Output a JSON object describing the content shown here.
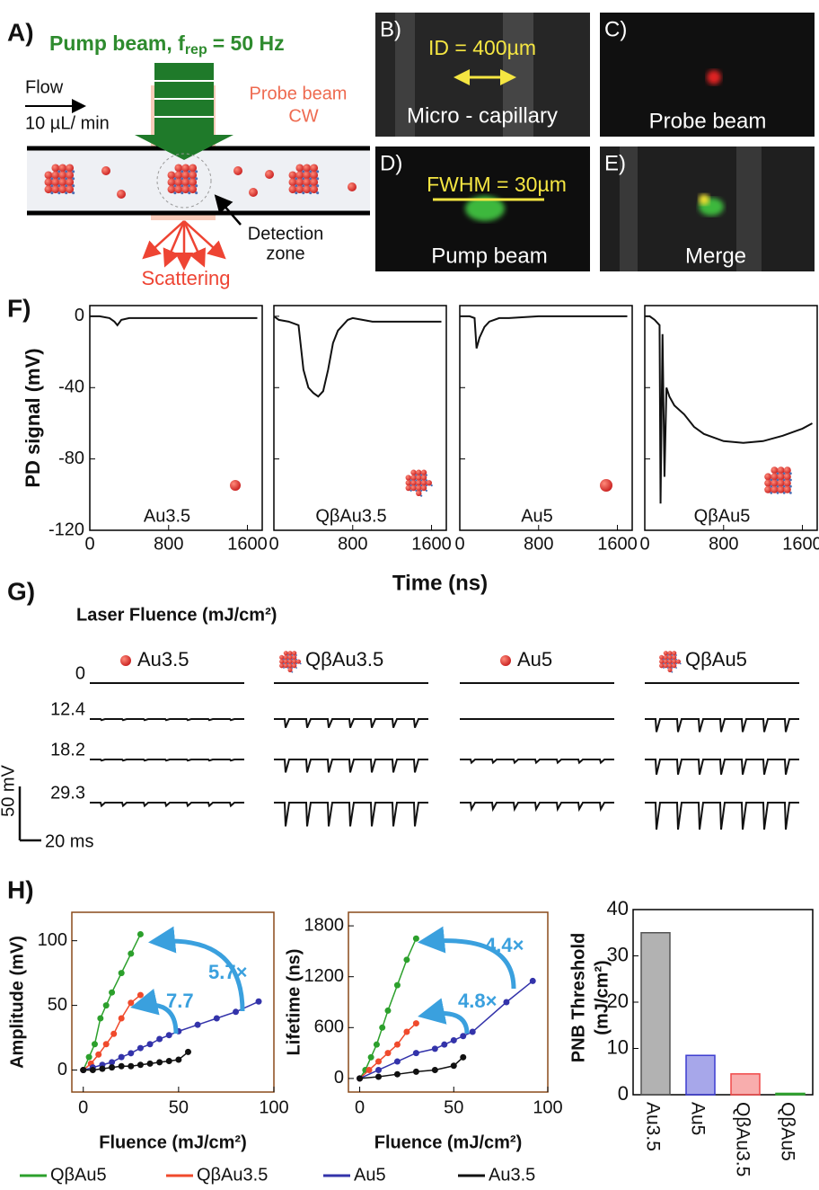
{
  "panel_labels": [
    "A)",
    "B)",
    "C)",
    "D)",
    "E)",
    "F)",
    "G)",
    "H)"
  ],
  "panel_a": {
    "title": "Pump beam, f",
    "title_sub": "rep",
    "title_end": "= 50 Hz",
    "flow": "Flow",
    "flow_rate": "10 µL/ min",
    "probe": [
      "Probe beam",
      "CW"
    ],
    "detection": [
      "Detection",
      "zone"
    ],
    "scattering": "Scattering"
  },
  "images": {
    "b_scale": "ID = 400µm",
    "b_label": "Micro - capillary",
    "c_label": "Probe beam",
    "d_scale": "FWHM = 30µm",
    "d_label": "Pump beam",
    "e_label": "Merge"
  },
  "panel_g": {
    "title": "Laser Fluence (mJ/cm²)",
    "samples": [
      "Au3.5",
      "QβAu3.5",
      "Au5",
      "QβAu5"
    ],
    "fluences": [
      "0",
      "12.4",
      "18.2",
      "29.3"
    ],
    "spike_depths": [
      [
        0,
        0,
        0,
        0
      ],
      [
        1,
        8,
        0,
        12
      ],
      [
        1,
        12,
        3,
        14
      ],
      [
        3,
        22,
        6,
        25
      ]
    ],
    "scale_amplitude": {
      "value": 50,
      "label": "50 mV"
    },
    "scale_time": {
      "value": 20,
      "label": "20 ms"
    }
  },
  "chart_data": [
    {
      "type": "line",
      "ylabel": "PD signal (mV)",
      "xlabel": "Time (ns)",
      "color": "#111111",
      "xlim": [
        0,
        1750
      ],
      "xticks": [
        0,
        800,
        1600
      ],
      "ylim": [
        -120,
        6
      ],
      "yticks": [
        0,
        -40,
        -80,
        -120
      ],
      "panels": [
        {
          "label": "Au3.5",
          "x": [
            0,
            100,
            200,
            250,
            280,
            320,
            400,
            800,
            1200,
            1700
          ],
          "values": [
            0,
            0,
            -1,
            -3,
            -5,
            -2,
            -1,
            -1,
            -1,
            -1
          ]
        },
        {
          "label": "QβAu3.5",
          "x": [
            0,
            50,
            150,
            250,
            300,
            350,
            400,
            450,
            500,
            550,
            600,
            650,
            700,
            750,
            800,
            900,
            1000,
            1200,
            1400,
            1700
          ],
          "values": [
            0,
            -2,
            -3,
            -5,
            -30,
            -40,
            -43,
            -45,
            -42,
            -30,
            -15,
            -8,
            -5,
            -2,
            -1,
            -2,
            -3,
            -3,
            -3,
            -3
          ]
        },
        {
          "label": "Au5",
          "x": [
            0,
            100,
            150,
            170,
            200,
            250,
            300,
            400,
            500,
            800,
            1200,
            1700
          ],
          "values": [
            0,
            0,
            -1,
            -18,
            -12,
            -6,
            -3,
            -1,
            -1,
            0,
            0,
            0
          ]
        },
        {
          "label": "QβAu5",
          "x": [
            0,
            50,
            100,
            150,
            160,
            180,
            200,
            220,
            250,
            300,
            400,
            500,
            600,
            800,
            1000,
            1200,
            1400,
            1600,
            1700
          ],
          "values": [
            0,
            0,
            -2,
            -5,
            -105,
            -10,
            -90,
            -40,
            -45,
            -50,
            -55,
            -62,
            -66,
            -70,
            -71,
            -70,
            -67,
            -63,
            -60
          ]
        }
      ]
    },
    {
      "type": "scatter",
      "ylabel": "Amplitude (mV)",
      "xlabel": "Fluence (mJ/cm²)",
      "xlim": [
        -6,
        100
      ],
      "xticks": [
        0,
        50,
        100
      ],
      "ylim": [
        -17,
        122
      ],
      "yticks": [
        0,
        50,
        100
      ],
      "annotations": [
        "5.7×",
        "7.7"
      ],
      "series": [
        {
          "name": "QβAu5",
          "color": "#2ca02c",
          "x": [
            0,
            3,
            6,
            9,
            12,
            15,
            20,
            25,
            30
          ],
          "values": [
            0,
            10,
            20,
            40,
            50,
            60,
            75,
            90,
            105
          ]
        },
        {
          "name": "QβAu3.5",
          "color": "#f04a2c",
          "x": [
            0,
            4,
            8,
            12,
            16,
            20,
            25,
            30
          ],
          "values": [
            0,
            5,
            12,
            20,
            28,
            40,
            52,
            58
          ]
        },
        {
          "name": "Au5",
          "color": "#3333aa",
          "x": [
            0,
            5,
            10,
            15,
            20,
            25,
            30,
            35,
            40,
            45,
            50,
            60,
            70,
            80,
            92
          ],
          "values": [
            0,
            2,
            4,
            6,
            10,
            13,
            17,
            20,
            24,
            27,
            30,
            35,
            40,
            45,
            53
          ]
        },
        {
          "name": "Au3.5",
          "color": "#111111",
          "x": [
            0,
            5,
            10,
            15,
            20,
            25,
            30,
            35,
            40,
            45,
            50,
            55
          ],
          "values": [
            0,
            0,
            1,
            2,
            3,
            3,
            4,
            5,
            6,
            7,
            8,
            14
          ]
        }
      ]
    },
    {
      "type": "scatter",
      "ylabel": "Lifetime (ns)",
      "xlabel": "Fluence (mJ/cm²)",
      "xlim": [
        -6,
        100
      ],
      "xticks": [
        0,
        50,
        100
      ],
      "ylim": [
        -160,
        1960
      ],
      "yticks": [
        0,
        600,
        1200,
        1800
      ],
      "annotations": [
        "4.4×",
        "4.8×"
      ],
      "series": [
        {
          "color": "#2ca02c",
          "x": [
            0,
            3,
            6,
            9,
            12,
            15,
            20,
            25,
            30
          ],
          "values": [
            0,
            100,
            250,
            400,
            600,
            800,
            1100,
            1400,
            1650
          ]
        },
        {
          "color": "#f04a2c",
          "x": [
            0,
            5,
            10,
            15,
            20,
            25,
            30
          ],
          "values": [
            0,
            100,
            200,
            300,
            400,
            550,
            650
          ]
        },
        {
          "color": "#3333aa",
          "x": [
            0,
            10,
            20,
            30,
            40,
            45,
            50,
            55,
            60,
            78,
            92
          ],
          "values": [
            0,
            100,
            200,
            300,
            350,
            400,
            450,
            500,
            550,
            900,
            1150
          ]
        },
        {
          "color": "#111111",
          "x": [
            0,
            10,
            20,
            30,
            40,
            50,
            55
          ],
          "values": [
            0,
            20,
            50,
            80,
            100,
            150,
            250
          ]
        }
      ]
    },
    {
      "type": "bar",
      "ylabel": [
        "PNB Threshold",
        "(mJ/cm²)"
      ],
      "categories": [
        "Au3.5",
        "Au5",
        "QβAu3.5",
        "QβAu5"
      ],
      "values": [
        35,
        8.5,
        4.5,
        0.3
      ],
      "colors": [
        "#555555",
        "#3b3bd0",
        "#f04a4a",
        "#2ca02c"
      ],
      "ylim": [
        0,
        40
      ],
      "yticks": [
        0,
        10,
        20,
        30,
        40
      ]
    }
  ]
}
